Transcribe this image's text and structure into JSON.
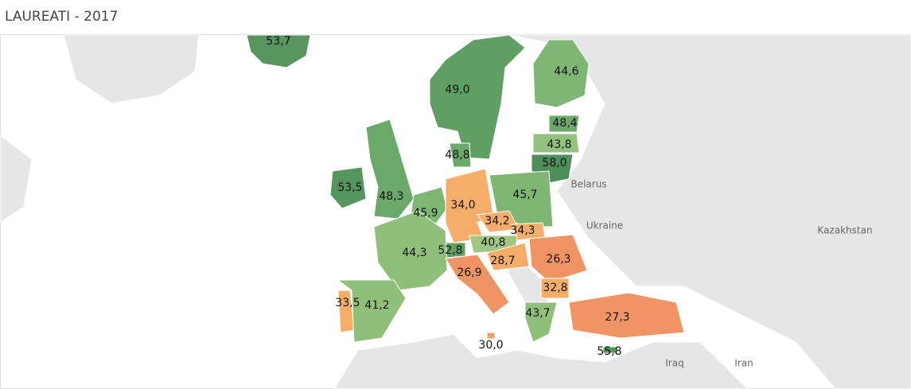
{
  "chart_data": {
    "type": "choropleth",
    "title": "LAUREATI - 2017",
    "values": [
      53.7,
      49.0,
      44.6,
      48.4,
      43.8,
      58.0,
      48.8,
      53.5,
      48.3,
      45.9,
      34.0,
      45.7,
      34.2,
      34.3,
      40.8,
      52.8,
      44.3,
      28.7,
      26.3,
      26.9,
      32.8,
      33.5,
      41.2,
      43.7,
      27.3,
      30.0,
      55.8
    ],
    "value_labels": [
      "53,7",
      "49,0",
      "44,6",
      "48,4",
      "43,8",
      "58,0",
      "48,8",
      "53,5",
      "48,3",
      "45,9",
      "34,0",
      "45,7",
      "34,2",
      "34,3",
      "40,8",
      "52,8",
      "44,3",
      "28,7",
      "26,3",
      "26,9",
      "32,8",
      "33,5",
      "41,2",
      "43,7",
      "27,3",
      "30,0",
      "55,8"
    ],
    "colors": [
      "#57975f",
      "#5f9f64",
      "#7db773",
      "#6aa96a",
      "#93c27c",
      "#4f8e59",
      "#6aa96a",
      "#55955e",
      "#6aa96a",
      "#7db773",
      "#f6ad6a",
      "#7db773",
      "#f6ad6a",
      "#f6ad6a",
      "#9fc781",
      "#5f9f64",
      "#8fbf79",
      "#f6ad6a",
      "#f09463",
      "#f09463",
      "#f6ad6a",
      "#f6ad6a",
      "#8fbf79",
      "#8fbf79",
      "#f09463",
      "#f2a065",
      "#55955e"
    ],
    "place_labels": [
      "Belarus",
      "Ukraine",
      "Kazakhstan",
      "Iraq",
      "Iran"
    ]
  }
}
